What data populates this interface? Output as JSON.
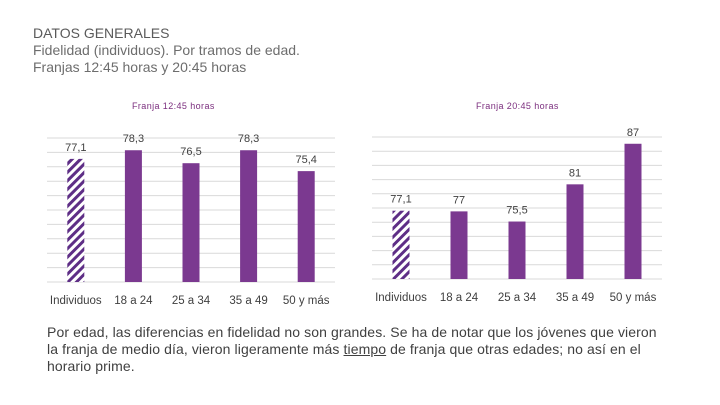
{
  "header": {
    "line1": "DATOS GENERALES",
    "line2": "Fidelidad (individuos). Por tramos de edad.",
    "line3": "Franjas 12:45 horas y 20:45 horas"
  },
  "caption": {
    "part1": "Por edad, las diferencias en fidelidad no son grandes. Se ha de notar que los jóvenes que vieron la franja de medio día, vieron ligeramente más ",
    "underlined": "tiempo",
    "part2": " de franja que otras edades; no así en el horario prime."
  },
  "colors": {
    "bar": "#7b3990",
    "hatch": "#5e2e86",
    "grid": "#d9d9d9"
  },
  "chart_data": [
    {
      "type": "bar",
      "title": "Franja 12:45 horas",
      "categories": [
        "Individuos",
        "18 a 24",
        "25 a 34",
        "35 a 49",
        "50 y más"
      ],
      "values": [
        77.1,
        78.3,
        76.5,
        78.3,
        75.4
      ],
      "labels": [
        "77,1",
        "78,3",
        "76,5",
        "78,3",
        "75,4"
      ],
      "patterns": [
        "hatched",
        "solid",
        "solid",
        "solid",
        "solid"
      ],
      "ylim": [
        60,
        80
      ],
      "grid": true,
      "legend": "none"
    },
    {
      "type": "bar",
      "title": "Franja 20:45 horas",
      "categories": [
        "Individuos",
        "18 a 24",
        "25 a 34",
        "35 a 49",
        "50 y más"
      ],
      "values": [
        77.1,
        77,
        75.5,
        81,
        87
      ],
      "labels": [
        "77,1",
        "77",
        "75,5",
        "81",
        "87"
      ],
      "patterns": [
        "hatched",
        "solid",
        "solid",
        "solid",
        "solid"
      ],
      "ylim": [
        67,
        88
      ],
      "grid": true,
      "legend": "none"
    }
  ]
}
